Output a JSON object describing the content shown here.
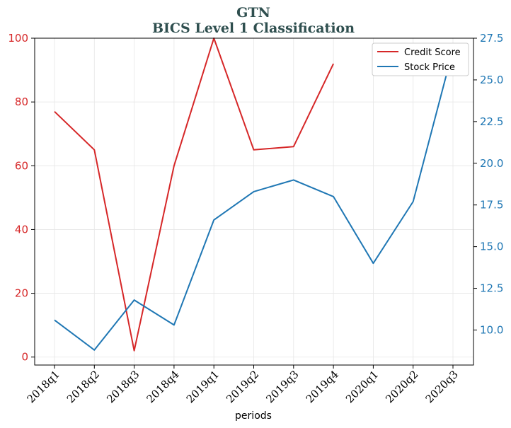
{
  "chart_data": {
    "type": "line",
    "title": "GTN",
    "subtitle": "BICS Level 1 Classification",
    "xlabel": "periods",
    "categories": [
      "2018q1",
      "2018q2",
      "2018q3",
      "2018q4",
      "2019q1",
      "2019q2",
      "2019q3",
      "2019q4",
      "2020q1",
      "2020q2",
      "2020q3"
    ],
    "left_axis": {
      "ylim": [
        -2.5,
        100
      ],
      "ticks": [
        0,
        20,
        40,
        60,
        80,
        100
      ],
      "color": "#d62728"
    },
    "right_axis": {
      "ylim": [
        7.9,
        27.5
      ],
      "ticks": [
        10.0,
        12.5,
        15.0,
        17.5,
        20.0,
        22.5,
        25.0,
        27.5
      ],
      "tick_labels": [
        "10.0",
        "12.5",
        "15.0",
        "17.5",
        "20.0",
        "22.5",
        "25.0",
        "27.5"
      ],
      "color": "#1f77b4"
    },
    "series": [
      {
        "name": "Credit Score",
        "axis": "left",
        "color": "#d62728",
        "values": [
          77,
          65,
          2,
          60,
          100,
          65,
          66,
          92,
          null,
          null,
          null
        ]
      },
      {
        "name": "Stock Price",
        "axis": "right",
        "color": "#1f77b4",
        "values": [
          10.6,
          8.8,
          11.8,
          10.3,
          16.6,
          18.3,
          19.0,
          18.0,
          14.0,
          17.7,
          26.8
        ]
      }
    ],
    "grid": true,
    "legend_position": "top-right"
  }
}
